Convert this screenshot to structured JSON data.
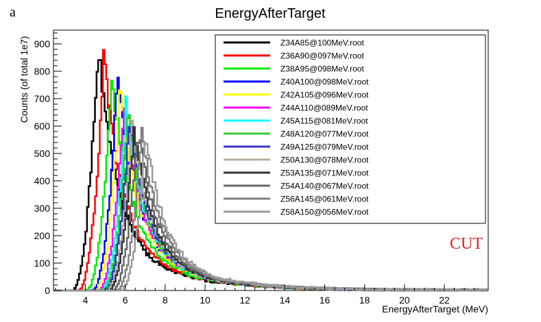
{
  "panel_label": "a",
  "chart_data": {
    "type": "line",
    "title": "EnergyAfterTarget",
    "xlabel": "EnergyAfterTarget (MeV)",
    "ylabel": "Counts (of total 1e7)",
    "xlim": [
      2.4,
      24.2
    ],
    "ylim": [
      0,
      950
    ],
    "x_ticks": [
      4,
      6,
      8,
      10,
      12,
      14,
      16,
      18,
      20,
      22
    ],
    "y_ticks": [
      0,
      100,
      200,
      300,
      400,
      500,
      600,
      700,
      800,
      900
    ],
    "annotation": "CUT",
    "annotation_color": "#dd2222",
    "legend_position": "top-right",
    "series": [
      {
        "name": "Z34A85@100MeV.root",
        "color": "#000000",
        "peak_x": 4.6,
        "peak_y": 890
      },
      {
        "name": "Z36A90@097MeV.root",
        "color": "#ff0000",
        "peak_x": 4.9,
        "peak_y": 860
      },
      {
        "name": "Z38A95@098MeV.root",
        "color": "#00ee00",
        "peak_x": 5.3,
        "peak_y": 790
      },
      {
        "name": "Z40A100@098MeV.root",
        "color": "#0000ff",
        "peak_x": 5.6,
        "peak_y": 810
      },
      {
        "name": "Z42A105@096MeV.root",
        "color": "#ffff00",
        "peak_x": 5.7,
        "peak_y": 730
      },
      {
        "name": "Z44A110@089MeV.root",
        "color": "#ff00ff",
        "peak_x": 5.9,
        "peak_y": 690
      },
      {
        "name": "Z45A115@081MeV.root",
        "color": "#00ffff",
        "peak_x": 6.0,
        "peak_y": 670
      },
      {
        "name": "Z48A120@077MeV.root",
        "color": "#33cc33",
        "peak_x": 6.1,
        "peak_y": 640
      },
      {
        "name": "Z49A125@079MeV.root",
        "color": "#3333cc",
        "peak_x": 6.2,
        "peak_y": 625
      },
      {
        "name": "Z50A130@078MeV.root",
        "color": "#b4aca0",
        "peak_x": 6.3,
        "peak_y": 610
      },
      {
        "name": "Z53A135@071MeV.root",
        "color": "#333333",
        "peak_x": 6.4,
        "peak_y": 600
      },
      {
        "name": "Z54A140@067MeV.root",
        "color": "#666666",
        "peak_x": 6.6,
        "peak_y": 595
      },
      {
        "name": "Z56A145@061MeV.root",
        "color": "#808080",
        "peak_x": 6.8,
        "peak_y": 585
      },
      {
        "name": "Z58A150@056MeV.root",
        "color": "#9a9a9a",
        "peak_x": 7.0,
        "peak_y": 570
      }
    ]
  }
}
